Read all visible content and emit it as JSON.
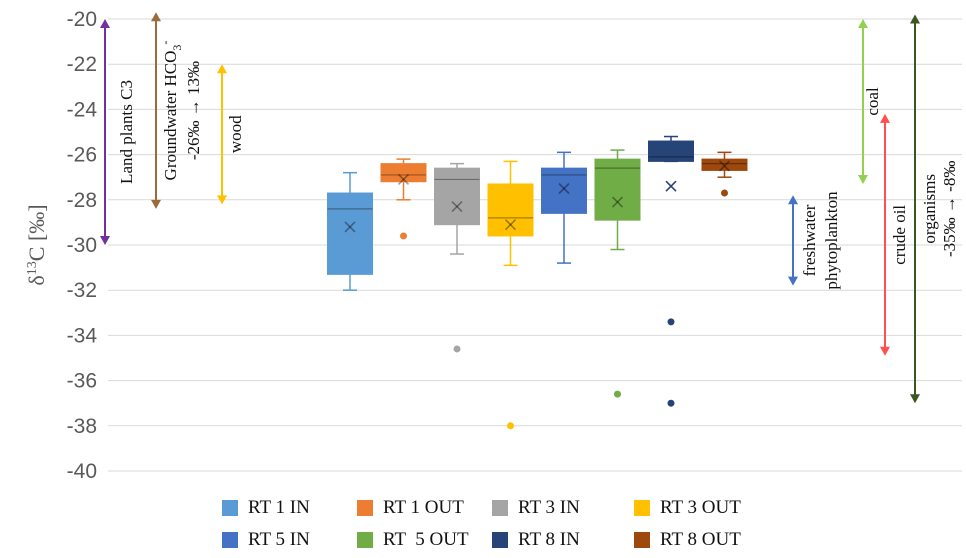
{
  "chart_data": {
    "type": "box",
    "ylabel": "δ¹³C [‰]",
    "ylabel_main": "δ",
    "ylabel_sup": "13",
    "ylabel_rest": "C [‰]",
    "ylim": [
      -40,
      -20
    ],
    "y_ticks": [
      -20,
      -22,
      -24,
      -26,
      -28,
      -30,
      -32,
      -34,
      -36,
      -38,
      -40
    ],
    "grid": true,
    "legend_position": "bottom",
    "series": [
      {
        "name": "RT 1 IN",
        "color": "#5b9bd5",
        "min": -32.0,
        "q1": -31.3,
        "median": -28.4,
        "q3": -27.7,
        "max": -26.8,
        "mean": -29.2,
        "outliers": []
      },
      {
        "name": "RT 1 OUT",
        "color": "#ed7d31",
        "min": -28.0,
        "q1": -27.2,
        "median": -26.9,
        "q3": -26.4,
        "max": -26.2,
        "mean": -27.1,
        "outliers": [
          -29.6
        ]
      },
      {
        "name": "RT 3 IN",
        "color": "#a5a5a5",
        "min": -30.4,
        "q1": -29.1,
        "median": -27.1,
        "q3": -26.6,
        "max": -26.4,
        "mean": -28.3,
        "outliers": [
          -34.6
        ]
      },
      {
        "name": "RT 3 OUT",
        "color": "#ffc000",
        "min": -30.9,
        "q1": -29.6,
        "median": -28.8,
        "q3": -27.3,
        "max": -26.3,
        "mean": -29.1,
        "outliers": [
          -38.0
        ]
      },
      {
        "name": "RT 5 IN",
        "color": "#4472c4",
        "min": -30.8,
        "q1": -28.6,
        "median": -26.9,
        "q3": -26.6,
        "max": -25.9,
        "mean": -27.5,
        "outliers": []
      },
      {
        "name": "RT  5 OUT",
        "color": "#70ad47",
        "min": -30.2,
        "q1": -28.9,
        "median": -26.6,
        "q3": -26.2,
        "max": -25.8,
        "mean": -28.1,
        "outliers": [
          -36.6
        ]
      },
      {
        "name": "RT 8 IN",
        "color": "#264478",
        "min": -26.3,
        "q1": -26.3,
        "median": -26.1,
        "q3": -25.4,
        "max": -25.2,
        "mean": -27.4,
        "outliers": [
          -33.4,
          -37.0
        ]
      },
      {
        "name": "RT 8 OUT",
        "color": "#9e480e",
        "min": -27.0,
        "q1": -26.7,
        "median": -26.4,
        "q3": -26.2,
        "max": -25.9,
        "mean": -26.5,
        "outliers": [
          -27.7
        ]
      }
    ],
    "annotations": [
      {
        "name": "land-plants-c3",
        "lines": [
          "Land plants C3"
        ],
        "sub": "",
        "color": "#7030a0",
        "y_top": -20,
        "y_bottom": -30
      },
      {
        "name": "groundwater-hco3",
        "lines": [
          "Groundwater HCO",
          "-26‰ → 13‰"
        ],
        "sub": "3",
        "sup": "-",
        "color": "#9c6b3c",
        "y_top": -19.7,
        "y_bottom": -28.4
      },
      {
        "name": "wood",
        "lines": [
          "wood"
        ],
        "sub": "",
        "color": "#ffc000",
        "y_top": -22,
        "y_bottom": -28.2
      },
      {
        "name": "freshwater-phytoplankton",
        "lines": [
          "freshwater",
          "phytoplankton"
        ],
        "sub": "",
        "color": "#4472c4",
        "y_top": -27.8,
        "y_bottom": -31.8
      },
      {
        "name": "coal",
        "lines": [
          "coal"
        ],
        "sub": "",
        "color": "#92d050",
        "y_top": -20,
        "y_bottom": -27.3
      },
      {
        "name": "crude-oil",
        "lines": [
          "crude oil"
        ],
        "sub": "",
        "color": "#ff5050",
        "y_top": -24.2,
        "y_bottom": -34.9
      },
      {
        "name": "organisms",
        "lines": [
          "organisms",
          "-35‰ → -8‰"
        ],
        "sub": "",
        "color": "#385723",
        "y_top": -19.8,
        "y_bottom": -37.0
      }
    ]
  }
}
